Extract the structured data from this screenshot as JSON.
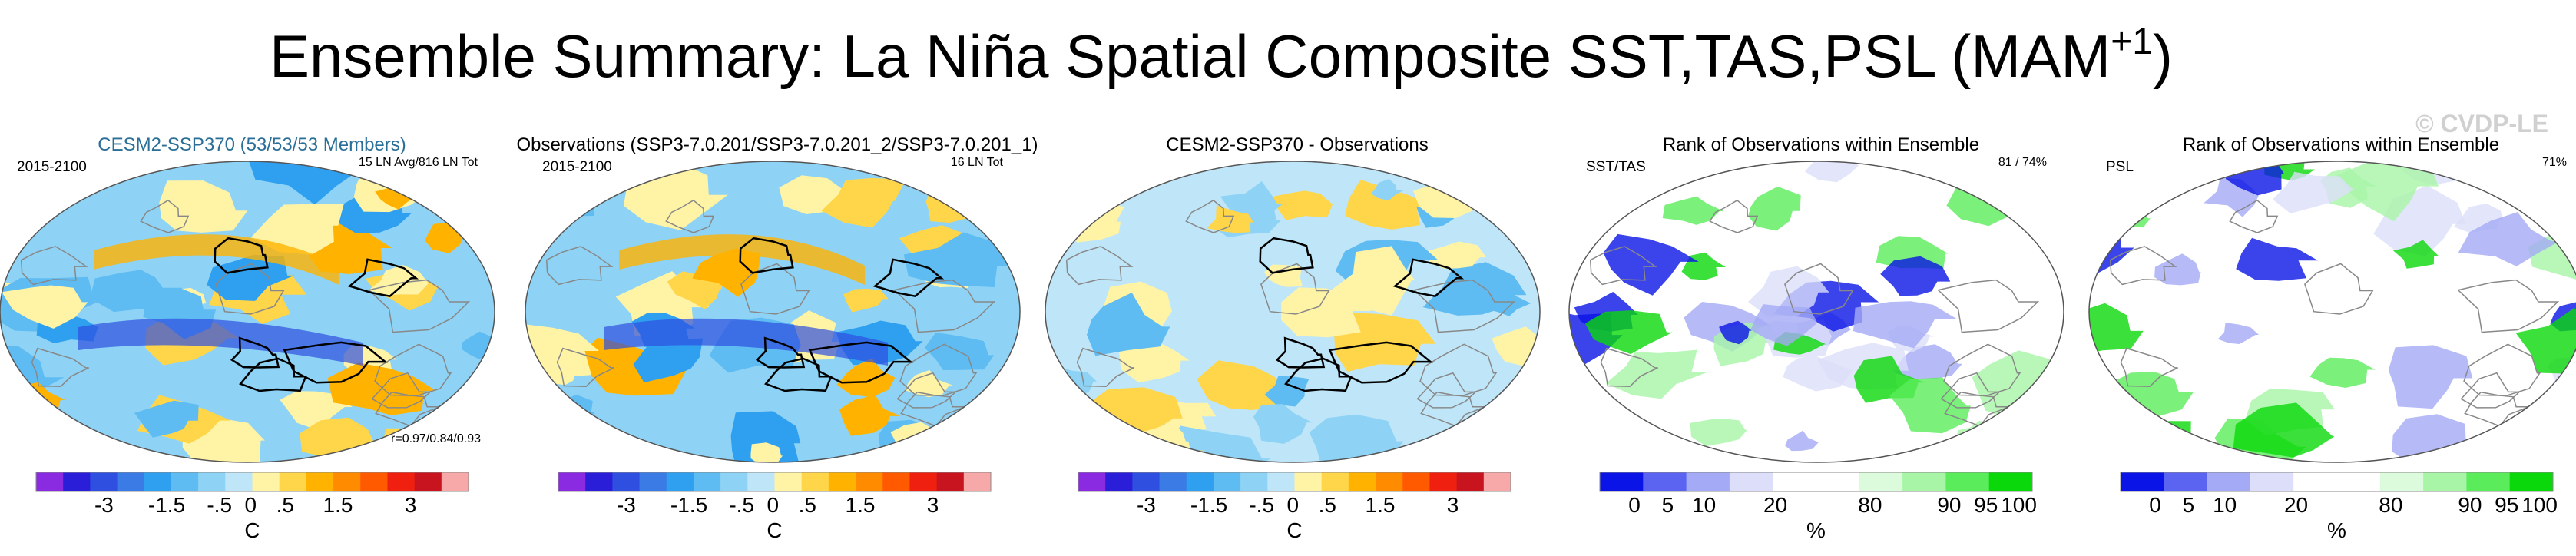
{
  "title": "Ensemble Summary: La Niña Spatial Composite SST,TAS,PSL (MAM",
  "title_superscript": "+1",
  "title_close": ")",
  "watermark": "© CVDP-LE",
  "palettes": {
    "anomaly": [
      "#8a2be2",
      "#2b1ed8",
      "#2e4fe0",
      "#3a7be6",
      "#2fa0f0",
      "#5ebcf2",
      "#8ed3f5",
      "#bfe6f8",
      "#fff3a6",
      "#ffd54a",
      "#ffb300",
      "#ff8c00",
      "#ff5a00",
      "#f02010",
      "#c8141e",
      "#f7a9a9"
    ],
    "rank": [
      "#0a14e6",
      "#5a64f0",
      "#a4aaf5",
      "#dcdefa",
      "#ffffff",
      "#ffffff",
      "#dcfadc",
      "#a8f5a8",
      "#5aec5a",
      "#0ad80a"
    ]
  },
  "panels": [
    {
      "title": "CESM2-SSP370 (53/53/53 Members)",
      "left_label": "2015-2100",
      "right_label": "15 LN Avg/816 LN Tot",
      "bottom_label": "r=0.97/0.84/0.93",
      "colorbar": {
        "palette": "anomaly",
        "ticks": [
          "-3",
          "-1.5",
          "-.5",
          "0",
          ".5",
          "1.5",
          "3"
        ],
        "unit": "C"
      }
    },
    {
      "title": "Observations (SSP3-7.0.201/SSP3-7.0.201_2/SSP3-7.0.201_1)",
      "left_label": "2015-2100",
      "right_label": "16 LN Tot",
      "colorbar": {
        "palette": "anomaly",
        "ticks": [
          "-3",
          "-1.5",
          "-.5",
          "0",
          ".5",
          "1.5",
          "3"
        ],
        "unit": "C"
      }
    },
    {
      "title": "CESM2-SSP370 - Observations",
      "colorbar": {
        "palette": "anomaly",
        "ticks": [
          "-3",
          "-1.5",
          "-.5",
          "0",
          ".5",
          "1.5",
          "3"
        ],
        "unit": "C"
      }
    },
    {
      "title": "Rank of Observations within Ensemble",
      "left_label": "SST/TAS",
      "right_label": "81 /  74%",
      "colorbar": {
        "palette": "rank",
        "ticks": [
          "0",
          "5",
          "10",
          "20",
          "80",
          "90",
          "95",
          "100"
        ],
        "unit": "%"
      }
    },
    {
      "title": "Rank of Observations within Ensemble",
      "left_label": "PSL",
      "right_label": "71%",
      "colorbar": {
        "palette": "rank",
        "ticks": [
          "0",
          "5",
          "10",
          "20",
          "80",
          "90",
          "95",
          "100"
        ],
        "unit": "%"
      }
    }
  ]
}
